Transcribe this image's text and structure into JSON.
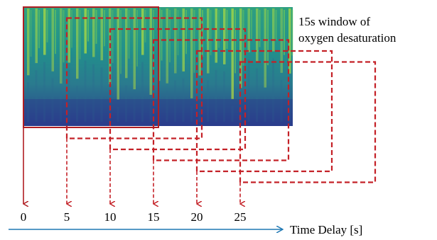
{
  "annotation": {
    "line1": "15s window of",
    "line2": "oxygen desaturation"
  },
  "time_axis": {
    "label": "Time Delay [s]",
    "ticks": [
      "0",
      "5",
      "10",
      "15",
      "20",
      "25"
    ]
  },
  "colors": {
    "window_solid": "#b01e23",
    "window_dashed": "#c42127",
    "axis_arrow": "#1f78b4",
    "spectrogram_low": "#2b3c8c",
    "spectrogram_mid": "#21918c",
    "spectrogram_high": "#bde33a"
  },
  "window_line_styles": [
    "solid",
    "dashed",
    "dashed",
    "dashed",
    "dashed",
    "dashed"
  ]
}
